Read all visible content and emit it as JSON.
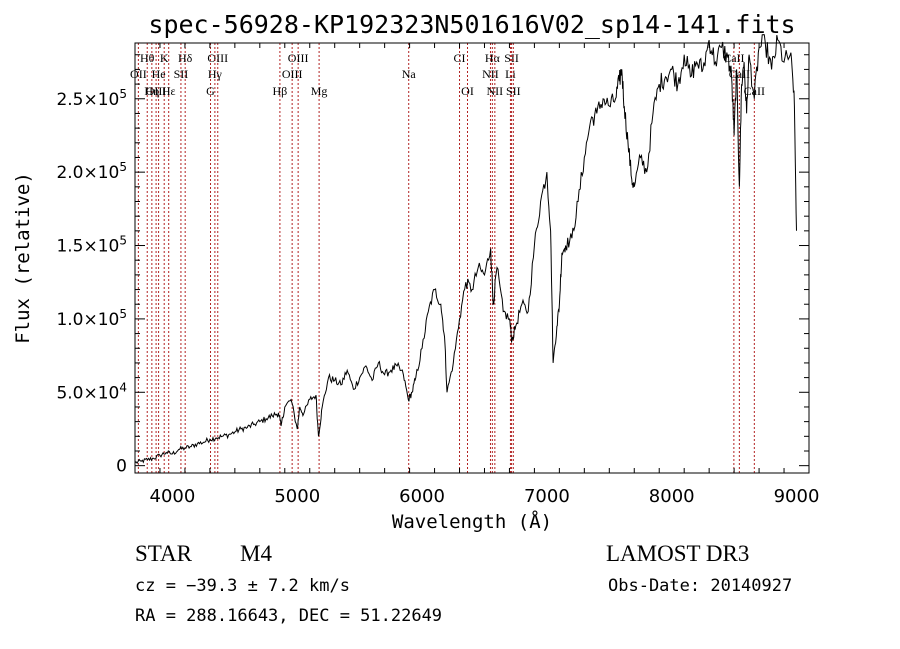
{
  "chart_data": {
    "type": "line",
    "title": "spec-56928-KP192323N501616V02_sp14-141.fits",
    "xlabel": "Wavelength (Å)",
    "ylabel": "Flux (relative)",
    "xlim": [
      3700,
      9100
    ],
    "ylim": [
      -5000,
      288000
    ],
    "x_ticks": [
      4000,
      5000,
      6000,
      7000,
      8000,
      9000
    ],
    "x_tick_labels": [
      "4000",
      "5000",
      "6000",
      "7000",
      "8000",
      "9000"
    ],
    "y_ticks": [
      {
        "value": 0,
        "mantissa": "0",
        "exponent": ""
      },
      {
        "value": 50000,
        "mantissa": "5.0×10",
        "exponent": "4"
      },
      {
        "value": 100000,
        "mantissa": "1.0×10",
        "exponent": "5"
      },
      {
        "value": 150000,
        "mantissa": "1.5×10",
        "exponent": "5"
      },
      {
        "value": 200000,
        "mantissa": "2.0×10",
        "exponent": "5"
      },
      {
        "value": 250000,
        "mantissa": "2.5×10",
        "exponent": "5"
      }
    ],
    "series": [
      {
        "name": "flux",
        "x": [
          3700,
          3750,
          3800,
          3850,
          3900,
          3950,
          4000,
          4050,
          4100,
          4150,
          4200,
          4250,
          4300,
          4350,
          4400,
          4450,
          4500,
          4550,
          4600,
          4650,
          4700,
          4750,
          4800,
          4850,
          4870,
          4900,
          4950,
          5000,
          5020,
          5050,
          5100,
          5150,
          5170,
          5200,
          5250,
          5300,
          5350,
          5400,
          5450,
          5500,
          5550,
          5600,
          5650,
          5700,
          5750,
          5800,
          5850,
          5890,
          5920,
          5950,
          6000,
          6050,
          6100,
          6150,
          6180,
          6200,
          6250,
          6300,
          6350,
          6400,
          6450,
          6500,
          6550,
          6570,
          6600,
          6650,
          6700,
          6720,
          6750,
          6800,
          6850,
          6900,
          6950,
          7000,
          7030,
          7050,
          7080,
          7100,
          7120,
          7150,
          7200,
          7250,
          7300,
          7350,
          7400,
          7450,
          7500,
          7550,
          7580,
          7600,
          7620,
          7650,
          7680,
          7700,
          7750,
          7800,
          7850,
          7900,
          7950,
          8000,
          8050,
          8100,
          8150,
          8200,
          8250,
          8300,
          8350,
          8400,
          8450,
          8480,
          8500,
          8520,
          8542,
          8560,
          8580,
          8600,
          8620,
          8662,
          8700,
          8750,
          8800,
          8850,
          8900,
          8950,
          8980,
          9000
        ],
        "y": [
          2000,
          3000,
          4000,
          5000,
          7000,
          9000,
          8000,
          11000,
          12000,
          13000,
          15000,
          16000,
          18000,
          19000,
          20000,
          21000,
          23000,
          25000,
          26000,
          28000,
          30000,
          32000,
          34000,
          36000,
          27000,
          40000,
          45000,
          25000,
          40000,
          35000,
          45000,
          48000,
          20000,
          40000,
          60000,
          58000,
          55000,
          65000,
          52000,
          60000,
          68000,
          58000,
          70000,
          62000,
          65000,
          68000,
          62000,
          45000,
          50000,
          60000,
          80000,
          105000,
          120000,
          110000,
          88000,
          50000,
          70000,
          100000,
          125000,
          120000,
          135000,
          130000,
          148000,
          110000,
          135000,
          105000,
          100000,
          85000,
          95000,
          110000,
          105000,
          150000,
          180000,
          200000,
          160000,
          70000,
          95000,
          110000,
          145000,
          150000,
          155000,
          180000,
          210000,
          235000,
          240000,
          250000,
          245000,
          250000,
          262000,
          270000,
          245000,
          220000,
          195000,
          190000,
          210000,
          200000,
          240000,
          260000,
          265000,
          270000,
          260000,
          280000,
          265000,
          275000,
          270000,
          290000,
          275000,
          285000,
          278000,
          265000,
          225000,
          270000,
          190000,
          260000,
          275000,
          240000,
          280000,
          250000,
          285000,
          288000,
          270000,
          290000,
          275000,
          280000,
          255000,
          160000
        ]
      }
    ],
    "line_markers": [
      {
        "name": "Hθ",
        "x": 3798,
        "row": 1
      },
      {
        "name": "K",
        "x": 3934,
        "row": 1
      },
      {
        "name": "Hδ",
        "x": 4102,
        "row": 1
      },
      {
        "name": "OIII",
        "x": 4363,
        "row": 1
      },
      {
        "name": "OIII",
        "x": 5007,
        "row": 1
      },
      {
        "name": "CI",
        "x": 6300,
        "row": 1
      },
      {
        "name": "Hα",
        "x": 6563,
        "row": 1
      },
      {
        "name": "SII",
        "x": 6717,
        "row": 1
      },
      {
        "name": "CaII",
        "x": 8498,
        "row": 1
      },
      {
        "name": "OII",
        "x": 3727,
        "row": 2
      },
      {
        "name": "He",
        "x": 3889,
        "row": 2
      },
      {
        "name": "SII",
        "x": 4068,
        "row": 2
      },
      {
        "name": "Hγ",
        "x": 4340,
        "row": 2
      },
      {
        "name": "OIII",
        "x": 4959,
        "row": 2
      },
      {
        "name": "Na",
        "x": 5893,
        "row": 2
      },
      {
        "name": "NII",
        "x": 6548,
        "row": 2
      },
      {
        "name": "Li",
        "x": 6708,
        "row": 2
      },
      {
        "name": "CaII",
        "x": 8542,
        "row": 2
      },
      {
        "name": "OIII",
        "x": 3869,
        "row": 3
      },
      {
        "name": "Hη",
        "x": 3835,
        "row": 3
      },
      {
        "name": "Hε",
        "x": 3970,
        "row": 3
      },
      {
        "name": "G",
        "x": 4305,
        "row": 3
      },
      {
        "name": "Hβ",
        "x": 4861,
        "row": 3
      },
      {
        "name": "Mg",
        "x": 5175,
        "row": 3
      },
      {
        "name": "OI",
        "x": 6364,
        "row": 3
      },
      {
        "name": "NII",
        "x": 6583,
        "row": 3
      },
      {
        "name": "SII",
        "x": 6731,
        "row": 3
      },
      {
        "name": "CaII",
        "x": 8662,
        "row": 3
      }
    ]
  },
  "info": {
    "object_class": "STAR",
    "subclass": "M4",
    "survey": "LAMOST DR3",
    "cz": "cz = −39.3 ± 7.2 km/s",
    "obs_date": "Obs-Date: 20140927",
    "coords": "RA = 288.16643, DEC =  51.22649"
  }
}
